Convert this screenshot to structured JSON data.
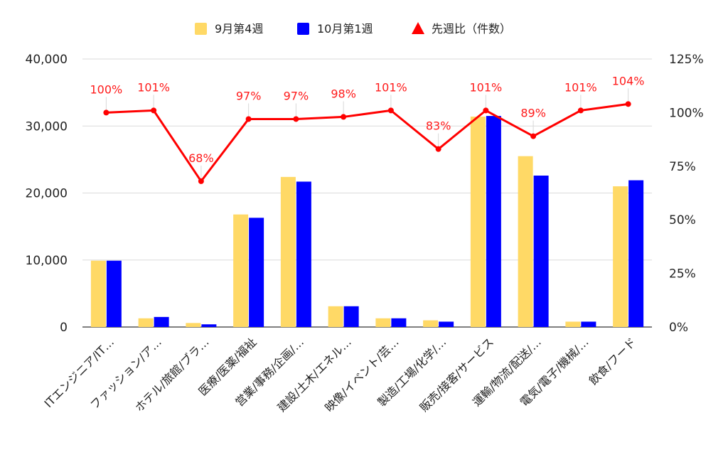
{
  "chart_data": {
    "type": "bar",
    "categories": [
      "ITエンジニア/IT…",
      "ファッション/ア…",
      "ホテル/旅館/ブラ…",
      "医療/医薬/福祉",
      "営業/事務/企画/…",
      "建設/土木/エネル…",
      "映像/イベント/芸…",
      "製造/工場/化学/…",
      "販売/接客/サービス",
      "運輸/物流/配送/…",
      "電気/電子/機械/…",
      "飲食/フード"
    ],
    "series": [
      {
        "name": "9月第4週",
        "color": "#ffd966",
        "axis": "left",
        "values": [
          9900,
          1300,
          600,
          16800,
          22400,
          3100,
          1300,
          1000,
          31400,
          25500,
          800,
          21000
        ]
      },
      {
        "name": "10月第1週",
        "color": "#0000ff",
        "axis": "left",
        "values": [
          9900,
          1500,
          400,
          16300,
          21700,
          3100,
          1300,
          800,
          31500,
          22600,
          800,
          21900
        ]
      },
      {
        "name": "先週比（件数）",
        "type": "line",
        "color": "#ff0000",
        "axis": "right",
        "values": [
          100,
          101,
          68,
          97,
          97,
          98,
          101,
          83,
          101,
          89,
          101,
          104
        ],
        "labels": [
          "100%",
          "101%",
          "68%",
          "97%",
          "97%",
          "98%",
          "101%",
          "83%",
          "101%",
          "89%",
          "101%",
          "104%"
        ]
      }
    ],
    "y_left": {
      "ylim": [
        0,
        40000
      ],
      "ticks": [
        0,
        10000,
        20000,
        30000,
        40000
      ],
      "tick_labels": [
        "0",
        "10,000",
        "20,000",
        "30,000",
        "40,000"
      ]
    },
    "y_right": {
      "ylim": [
        0,
        125
      ],
      "ticks": [
        0,
        25,
        50,
        75,
        100,
        125
      ],
      "tick_labels": [
        "0%",
        "25%",
        "50%",
        "75%",
        "100%",
        "125%"
      ]
    },
    "grid": true,
    "legend": "top-center",
    "title": "",
    "xlabel": "",
    "ylabel": ""
  }
}
